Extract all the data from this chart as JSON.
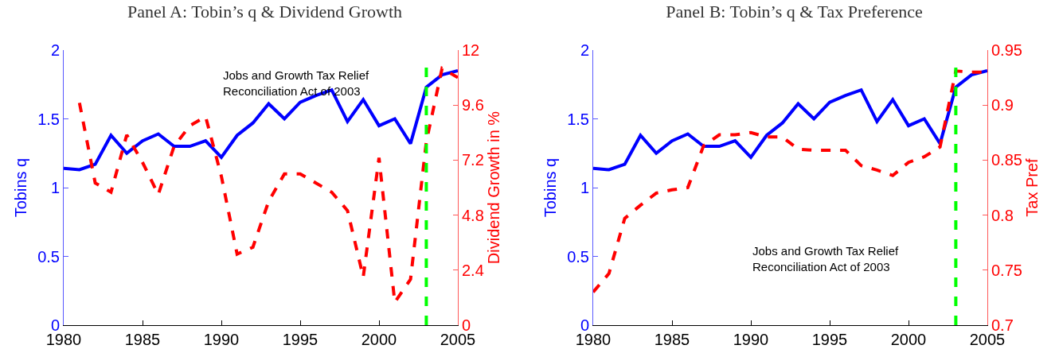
{
  "chart_data": [
    {
      "type": "line",
      "title": "Panel A: Tobin’s q & Dividend Growth",
      "ylabel": "Tobins q",
      "y2label": "Dividend Growth in %",
      "x": [
        1980,
        1981,
        1982,
        1983,
        1984,
        1985,
        1986,
        1987,
        1988,
        1989,
        1990,
        1991,
        1992,
        1993,
        1994,
        1995,
        1996,
        1997,
        1998,
        1999,
        2000,
        2001,
        2002,
        2003,
        2004,
        2005
      ],
      "series": [
        {
          "color": "#0000ff",
          "line_style": "solid",
          "axis": "y",
          "values": [
            1.14,
            1.13,
            1.17,
            1.38,
            1.25,
            1.34,
            1.39,
            1.3,
            1.3,
            1.34,
            1.22,
            1.38,
            1.47,
            1.61,
            1.5,
            1.62,
            1.67,
            1.71,
            1.48,
            1.64,
            1.45,
            1.5,
            1.32,
            1.73,
            1.82,
            1.85
          ]
        },
        {
          "color": "#ff0000",
          "line_style": "dashed",
          "axis": "y2",
          "values": [
            null,
            9.7,
            6.2,
            5.8,
            8.3,
            7.1,
            5.7,
            7.8,
            8.7,
            9.1,
            6.5,
            3.1,
            3.4,
            5.4,
            6.6,
            6.6,
            6.2,
            5.8,
            5.0,
            2.1,
            7.3,
            1.0,
            2.0,
            8.0,
            11.2,
            10.8
          ]
        }
      ],
      "xlim": [
        1980,
        2005
      ],
      "xticks": [
        1980,
        1985,
        1990,
        1995,
        2000,
        2005
      ],
      "ylim": [
        0,
        2
      ],
      "yticks": [
        0,
        0.5,
        1,
        1.5,
        2
      ],
      "y2lim": [
        0,
        12
      ],
      "y2ticks": [
        0,
        2.4,
        4.8,
        7.2,
        9.6,
        12
      ],
      "ref_lines": [
        {
          "axis": "x",
          "value": 2003,
          "color": "#00ff00",
          "line_style": "dashed"
        }
      ],
      "annotations": [
        "Jobs and Growth Tax Relief\nReconciliation Act of 2003"
      ],
      "grid": false
    },
    {
      "type": "line",
      "title": "Panel B: Tobin’s q & Tax Preference",
      "ylabel": "Tobins q",
      "y2label": "Tax Pref",
      "x": [
        1980,
        1981,
        1982,
        1983,
        1984,
        1985,
        1986,
        1987,
        1988,
        1989,
        1990,
        1991,
        1992,
        1993,
        1994,
        1995,
        1996,
        1997,
        1998,
        1999,
        2000,
        2001,
        2002,
        2003,
        2004,
        2005
      ],
      "series": [
        {
          "color": "#0000ff",
          "line_style": "solid",
          "axis": "y",
          "values": [
            1.14,
            1.13,
            1.17,
            1.38,
            1.25,
            1.34,
            1.39,
            1.3,
            1.3,
            1.34,
            1.22,
            1.38,
            1.47,
            1.61,
            1.5,
            1.62,
            1.67,
            1.71,
            1.48,
            1.64,
            1.45,
            1.5,
            1.32,
            1.73,
            1.82,
            1.85
          ]
        },
        {
          "color": "#ff0000",
          "line_style": "dashed",
          "axis": "y2",
          "values": [
            0.73,
            0.747,
            0.797,
            0.809,
            0.82,
            0.823,
            0.825,
            0.863,
            0.873,
            0.873,
            0.875,
            0.871,
            0.871,
            0.86,
            0.859,
            0.859,
            0.859,
            0.845,
            0.841,
            0.836,
            0.848,
            0.853,
            0.862,
            0.931,
            0.93,
            0.93
          ]
        }
      ],
      "xlim": [
        1980,
        2005
      ],
      "xticks": [
        1980,
        1985,
        1990,
        1995,
        2000,
        2005
      ],
      "ylim": [
        0,
        2
      ],
      "yticks": [
        0,
        0.5,
        1,
        1.5,
        2
      ],
      "y2lim": [
        0.7,
        0.95
      ],
      "y2ticks": [
        0.7,
        {
          "value": 0.75,
          "label": "0.75"
        },
        {
          "value": 0.8,
          "label": "0.8"
        },
        {
          "value": 0.85,
          "label": "0.85"
        },
        {
          "value": 0.9,
          "label": "0.9"
        },
        {
          "value": 0.95,
          "label": "0.95"
        }
      ],
      "ref_lines": [
        {
          "axis": "x",
          "value": 2003,
          "color": "#00ff00",
          "line_style": "dashed"
        }
      ],
      "annotations": [
        "Jobs and Growth Tax Relief\nReconciliation Act of 2003"
      ],
      "grid": false
    }
  ]
}
